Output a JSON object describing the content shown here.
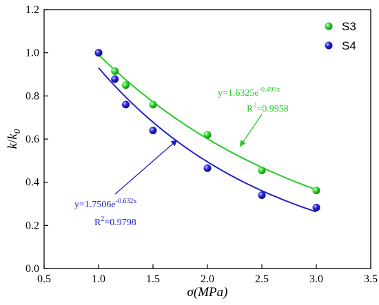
{
  "chart_data": {
    "type": "scatter",
    "title": "",
    "xlabel": "σ(MPa)",
    "ylabel_main": "k",
    "ylabel_slash": "/",
    "ylabel_k": "k",
    "ylabel_sub": "0",
    "xlim": [
      0.5,
      3.5
    ],
    "ylim": [
      0.0,
      1.2
    ],
    "x_ticks": [
      "0.5",
      "1.0",
      "1.5",
      "2.0",
      "2.5",
      "3.0",
      "3.5"
    ],
    "y_ticks": [
      "0.0",
      "0.2",
      "0.4",
      "0.6",
      "0.8",
      "1.0",
      "1.2"
    ],
    "x_tick_values": [
      0.5,
      1.0,
      1.5,
      2.0,
      2.5,
      3.0,
      3.5
    ],
    "y_tick_values": [
      0.0,
      0.2,
      0.4,
      0.6,
      0.8,
      1.0,
      1.2
    ],
    "grid": false,
    "legend_position": "top-right",
    "series": [
      {
        "name": "S3",
        "color": "#22cc22",
        "x": [
          1.0,
          1.15,
          1.25,
          1.5,
          2.0,
          2.5,
          3.0
        ],
        "y": [
          1.0,
          0.915,
          0.85,
          0.76,
          0.62,
          0.455,
          0.362
        ],
        "fit": {
          "a": 1.6325,
          "b": -0.499,
          "x_range": [
            1.0,
            3.0
          ]
        }
      },
      {
        "name": "S4",
        "color": "#1f1fcc",
        "x": [
          1.0,
          1.15,
          1.25,
          1.5,
          2.0,
          2.5,
          3.0
        ],
        "y": [
          1.0,
          0.878,
          0.76,
          0.64,
          0.465,
          0.34,
          0.283
        ],
        "fit": {
          "a": 1.7506,
          "b": -0.632,
          "x_range": [
            1.0,
            3.0
          ]
        }
      }
    ],
    "annotations": [
      {
        "series": "S3",
        "color": "#22cc22",
        "eq_prefix": "y=1.6325e",
        "eq_exp": "-0.499x",
        "r2_prefix": "R",
        "r2_sup": "2",
        "r2_value": "=0.9958",
        "arrow_to": [
          2.3,
          0.567
        ]
      },
      {
        "series": "S4",
        "color": "#1f1fcc",
        "eq_prefix": "y=1.7506e",
        "eq_exp": "-0.632x",
        "r2_prefix": "R",
        "r2_sup": "2",
        "r2_value": "=0.9798",
        "arrow_to": [
          1.72,
          0.595
        ]
      }
    ]
  }
}
